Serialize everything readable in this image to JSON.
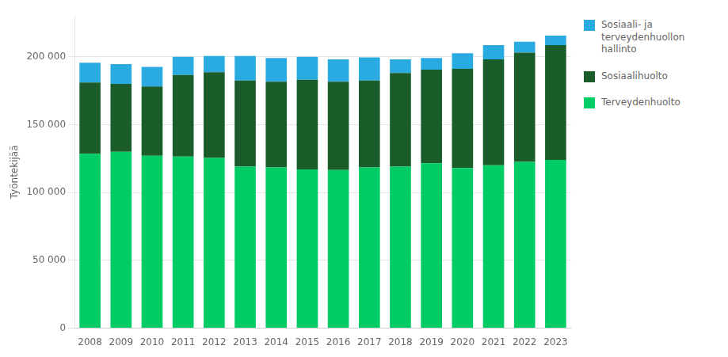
{
  "chart_data": {
    "type": "bar",
    "stacked": true,
    "categories": [
      "2008",
      "2009",
      "2010",
      "2011",
      "2012",
      "2013",
      "2014",
      "2015",
      "2016",
      "2017",
      "2018",
      "2019",
      "2020",
      "2021",
      "2022",
      "2023"
    ],
    "series": [
      {
        "name": "Terveydenhuolto",
        "color": "#00CC66",
        "values": [
          128500,
          130000,
          127000,
          126500,
          125500,
          119000,
          118500,
          117000,
          116500,
          118500,
          119000,
          121500,
          118000,
          120000,
          122500,
          124000
        ]
      },
      {
        "name": "Sosiaalihuolto",
        "color": "#1A5C2A",
        "values": [
          52500,
          50000,
          51000,
          60000,
          63000,
          63500,
          63000,
          66000,
          65000,
          64000,
          69000,
          69000,
          73000,
          78000,
          80500,
          84500
        ]
      },
      {
        "name": "Sosiaali- ja\nterveydenhuollon\nhallinto",
        "color": "#29ABE2",
        "values": [
          14500,
          14500,
          14500,
          13500,
          12000,
          18000,
          17500,
          17000,
          16500,
          17000,
          10000,
          8500,
          11500,
          10500,
          8000,
          7000
        ]
      }
    ],
    "ylabel": "Työntekijää",
    "ylim": [
      0,
      230000
    ],
    "yticks": [
      0,
      {
        "value": 50000,
        "label": "50 000"
      },
      {
        "value": 100000,
        "label": "100 000"
      },
      {
        "value": 150000,
        "label": "150 000"
      },
      {
        "value": 200000,
        "label": "200 000"
      }
    ],
    "grid": true,
    "legend": "right"
  }
}
